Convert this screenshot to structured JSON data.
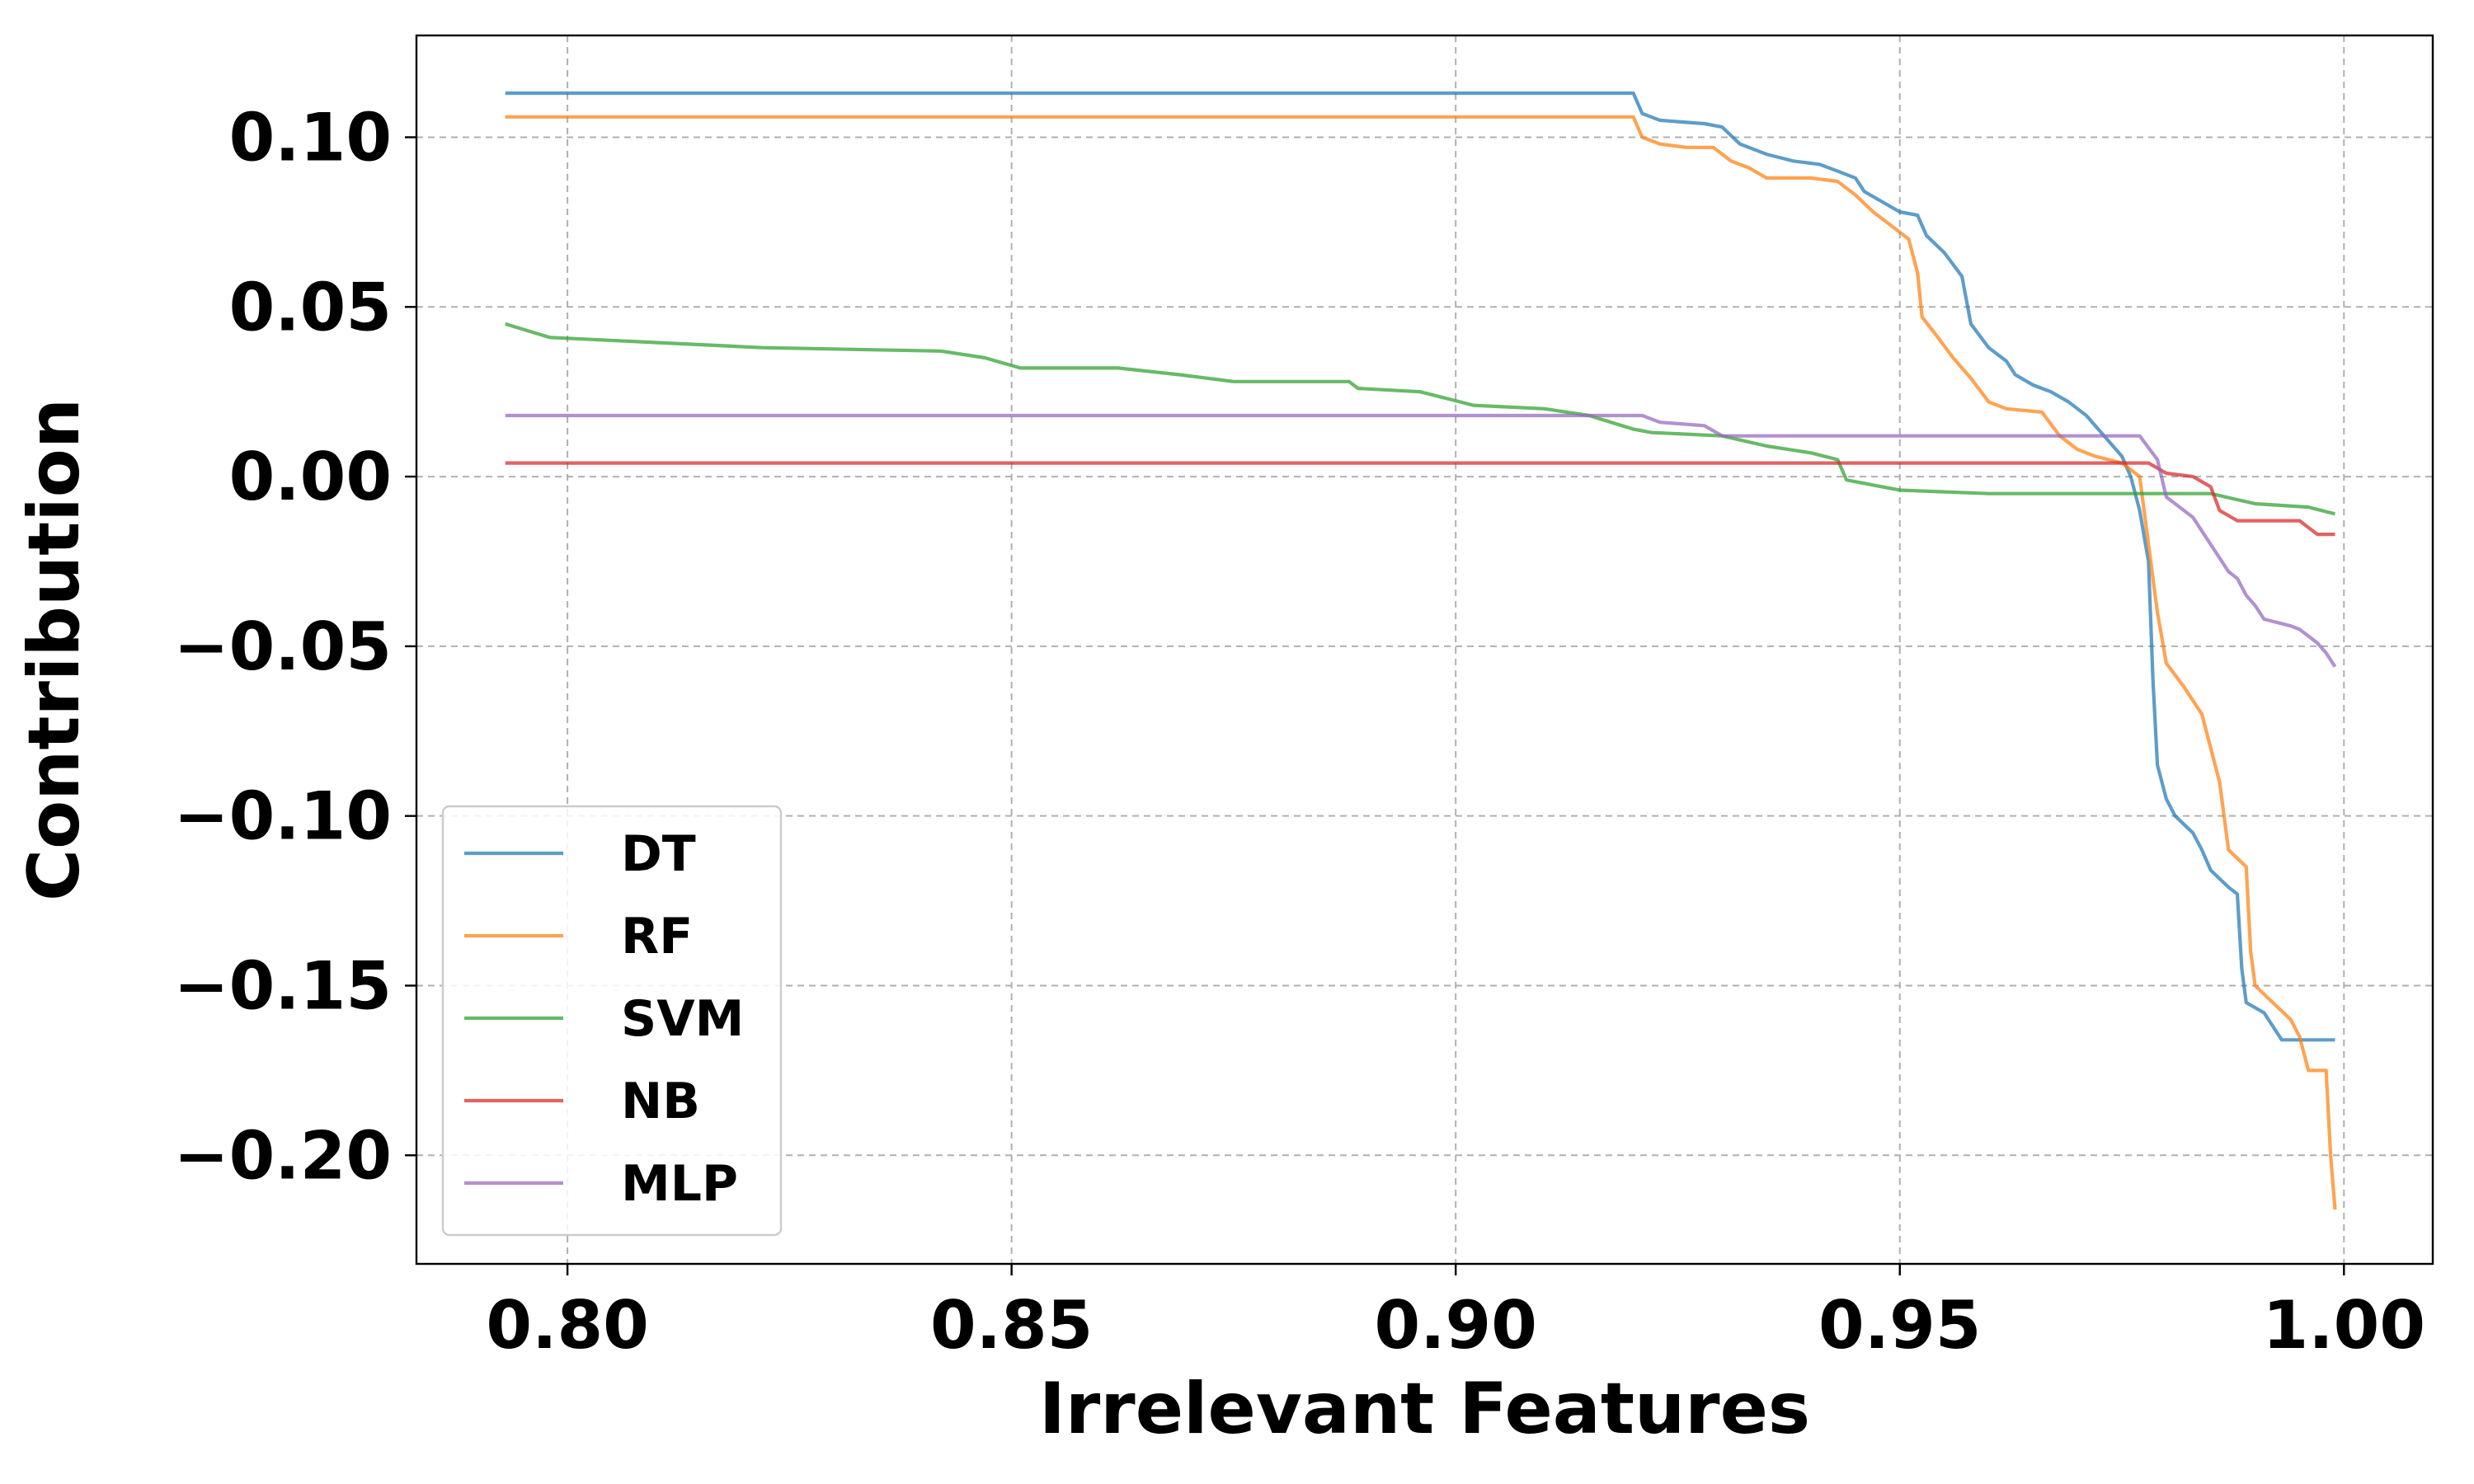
{
  "chart_data": {
    "type": "line",
    "xlabel": "Irrelevant Features",
    "ylabel": "Contribution",
    "xlim": [
      0.783,
      1.01
    ],
    "ylim": [
      -0.232,
      0.13
    ],
    "xticks": [
      0.8,
      0.85,
      0.9,
      0.95,
      1.0
    ],
    "xtick_labels": [
      "0.80",
      "0.85",
      "0.90",
      "0.95",
      "1.00"
    ],
    "yticks": [
      0.1,
      0.05,
      0.0,
      -0.05,
      -0.1,
      -0.15,
      -0.2
    ],
    "ytick_labels": [
      "0.10",
      "0.05",
      "0.00",
      "−0.05",
      "−0.10",
      "−0.15",
      "−0.20"
    ],
    "grid": true,
    "legend_position": "lower-left",
    "series": [
      {
        "name": "DT",
        "color": "#1f77b4",
        "points": [
          [
            0.793,
            0.113
          ],
          [
            0.92,
            0.113
          ],
          [
            0.921,
            0.107
          ],
          [
            0.923,
            0.105
          ],
          [
            0.928,
            0.104
          ],
          [
            0.93,
            0.103
          ],
          [
            0.932,
            0.098
          ],
          [
            0.935,
            0.095
          ],
          [
            0.938,
            0.093
          ],
          [
            0.941,
            0.092
          ],
          [
            0.943,
            0.09
          ],
          [
            0.945,
            0.088
          ],
          [
            0.946,
            0.084
          ],
          [
            0.948,
            0.081
          ],
          [
            0.95,
            0.078
          ],
          [
            0.952,
            0.077
          ],
          [
            0.953,
            0.071
          ],
          [
            0.955,
            0.066
          ],
          [
            0.957,
            0.059
          ],
          [
            0.958,
            0.045
          ],
          [
            0.96,
            0.038
          ],
          [
            0.962,
            0.034
          ],
          [
            0.963,
            0.03
          ],
          [
            0.965,
            0.027
          ],
          [
            0.967,
            0.025
          ],
          [
            0.969,
            0.022
          ],
          [
            0.971,
            0.018
          ],
          [
            0.973,
            0.012
          ],
          [
            0.975,
            0.006
          ],
          [
            0.976,
            0.0
          ],
          [
            0.977,
            -0.01
          ],
          [
            0.978,
            -0.025
          ],
          [
            0.9785,
            -0.06
          ],
          [
            0.979,
            -0.085
          ],
          [
            0.98,
            -0.095
          ],
          [
            0.981,
            -0.1
          ],
          [
            0.983,
            -0.105
          ],
          [
            0.984,
            -0.11
          ],
          [
            0.985,
            -0.116
          ],
          [
            0.987,
            -0.121
          ],
          [
            0.988,
            -0.123
          ],
          [
            0.9885,
            -0.145
          ],
          [
            0.989,
            -0.155
          ],
          [
            0.991,
            -0.158
          ],
          [
            0.992,
            -0.162
          ],
          [
            0.993,
            -0.166
          ],
          [
            0.999,
            -0.166
          ]
        ]
      },
      {
        "name": "RF",
        "color": "#ff7f0e",
        "points": [
          [
            0.793,
            0.106
          ],
          [
            0.92,
            0.106
          ],
          [
            0.921,
            0.1
          ],
          [
            0.923,
            0.098
          ],
          [
            0.926,
            0.097
          ],
          [
            0.929,
            0.097
          ],
          [
            0.931,
            0.093
          ],
          [
            0.933,
            0.091
          ],
          [
            0.935,
            0.088
          ],
          [
            0.94,
            0.088
          ],
          [
            0.943,
            0.087
          ],
          [
            0.945,
            0.083
          ],
          [
            0.947,
            0.078
          ],
          [
            0.949,
            0.074
          ],
          [
            0.951,
            0.07
          ],
          [
            0.952,
            0.06
          ],
          [
            0.9525,
            0.047
          ],
          [
            0.954,
            0.042
          ],
          [
            0.956,
            0.035
          ],
          [
            0.958,
            0.029
          ],
          [
            0.96,
            0.022
          ],
          [
            0.962,
            0.02
          ],
          [
            0.966,
            0.019
          ],
          [
            0.968,
            0.012
          ],
          [
            0.97,
            0.008
          ],
          [
            0.972,
            0.006
          ],
          [
            0.975,
            0.004
          ],
          [
            0.977,
            0.0
          ],
          [
            0.978,
            -0.02
          ],
          [
            0.979,
            -0.04
          ],
          [
            0.98,
            -0.055
          ],
          [
            0.982,
            -0.062
          ],
          [
            0.984,
            -0.07
          ],
          [
            0.985,
            -0.08
          ],
          [
            0.986,
            -0.09
          ],
          [
            0.987,
            -0.11
          ],
          [
            0.989,
            -0.115
          ],
          [
            0.9895,
            -0.14
          ],
          [
            0.99,
            -0.15
          ],
          [
            0.992,
            -0.155
          ],
          [
            0.994,
            -0.16
          ],
          [
            0.995,
            -0.165
          ],
          [
            0.996,
            -0.175
          ],
          [
            0.998,
            -0.175
          ],
          [
            0.9985,
            -0.2
          ],
          [
            0.999,
            -0.216
          ]
        ]
      },
      {
        "name": "SVM",
        "color": "#2ca02c",
        "points": [
          [
            0.793,
            0.045
          ],
          [
            0.798,
            0.041
          ],
          [
            0.822,
            0.038
          ],
          [
            0.842,
            0.037
          ],
          [
            0.847,
            0.035
          ],
          [
            0.851,
            0.032
          ],
          [
            0.862,
            0.032
          ],
          [
            0.869,
            0.03
          ],
          [
            0.875,
            0.028
          ],
          [
            0.888,
            0.028
          ],
          [
            0.889,
            0.026
          ],
          [
            0.896,
            0.025
          ],
          [
            0.902,
            0.021
          ],
          [
            0.91,
            0.02
          ],
          [
            0.915,
            0.018
          ],
          [
            0.92,
            0.014
          ],
          [
            0.922,
            0.013
          ],
          [
            0.93,
            0.012
          ],
          [
            0.935,
            0.009
          ],
          [
            0.94,
            0.007
          ],
          [
            0.943,
            0.005
          ],
          [
            0.944,
            -0.001
          ],
          [
            0.946,
            -0.002
          ],
          [
            0.948,
            -0.003
          ],
          [
            0.95,
            -0.004
          ],
          [
            0.96,
            -0.005
          ],
          [
            0.985,
            -0.005
          ],
          [
            0.99,
            -0.008
          ],
          [
            0.996,
            -0.009
          ],
          [
            0.999,
            -0.011
          ]
        ]
      },
      {
        "name": "NB",
        "color": "#d62728",
        "points": [
          [
            0.793,
            0.004
          ],
          [
            0.978,
            0.004
          ],
          [
            0.98,
            0.001
          ],
          [
            0.983,
            0.0
          ],
          [
            0.985,
            -0.003
          ],
          [
            0.986,
            -0.01
          ],
          [
            0.988,
            -0.013
          ],
          [
            0.995,
            -0.013
          ],
          [
            0.997,
            -0.017
          ],
          [
            0.999,
            -0.017
          ]
        ]
      },
      {
        "name": "MLP",
        "color": "#9467bd",
        "points": [
          [
            0.793,
            0.018
          ],
          [
            0.921,
            0.018
          ],
          [
            0.923,
            0.016
          ],
          [
            0.928,
            0.015
          ],
          [
            0.93,
            0.012
          ],
          [
            0.977,
            0.012
          ],
          [
            0.979,
            0.005
          ],
          [
            0.98,
            -0.006
          ],
          [
            0.983,
            -0.012
          ],
          [
            0.985,
            -0.02
          ],
          [
            0.987,
            -0.028
          ],
          [
            0.988,
            -0.03
          ],
          [
            0.989,
            -0.035
          ],
          [
            0.99,
            -0.038
          ],
          [
            0.991,
            -0.042
          ],
          [
            0.994,
            -0.044
          ],
          [
            0.995,
            -0.045
          ],
          [
            0.997,
            -0.049
          ],
          [
            0.998,
            -0.052
          ],
          [
            0.999,
            -0.056
          ]
        ]
      }
    ]
  }
}
